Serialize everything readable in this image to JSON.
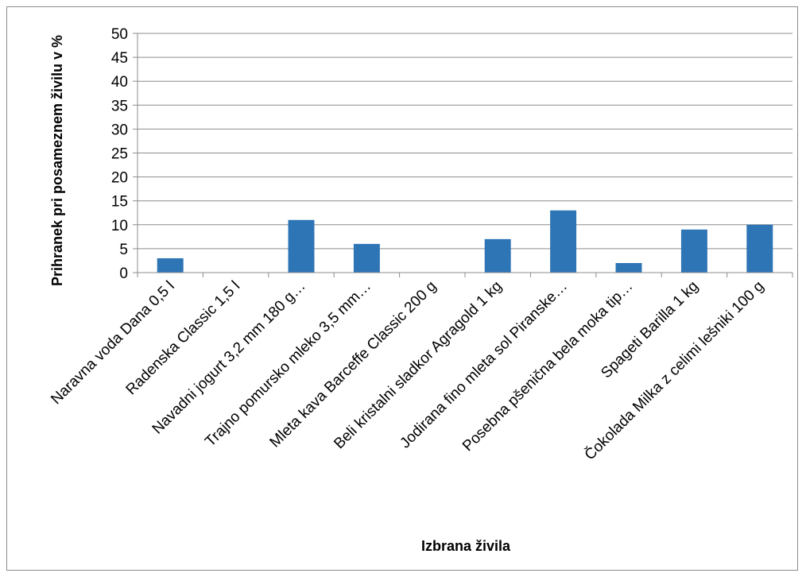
{
  "chart_data": {
    "type": "bar",
    "title": "",
    "xlabel": "Izbrana živila",
    "ylabel": "Prihranek pri posameznem živilu v %",
    "ylim": [
      0,
      50
    ],
    "yticks": [
      0,
      5,
      10,
      15,
      20,
      25,
      30,
      35,
      40,
      45,
      50
    ],
    "grid": true,
    "legend": "none",
    "bar_color": "#2e75b6",
    "categories": [
      "Naravna voda Dana 0,5 l",
      "Radenska Classic 1,5 l",
      "Navadni jogurt 3,2 mm 180 g…",
      "Trajno pomursko mleko 3,5 mm…",
      "Mleta kava Barceffe Classic 200 g",
      "Beli kristalni sladkor Agragold 1 kg",
      "Jodirana fino mleta sol Piranske…",
      "Posebna pšenična bela moka tip…",
      "Spageti Barilla 1 kg",
      "Čokolada Milka z celimi lešniki 100 g"
    ],
    "values": [
      3,
      0,
      11,
      6,
      0,
      7,
      13,
      2,
      9,
      10
    ]
  }
}
